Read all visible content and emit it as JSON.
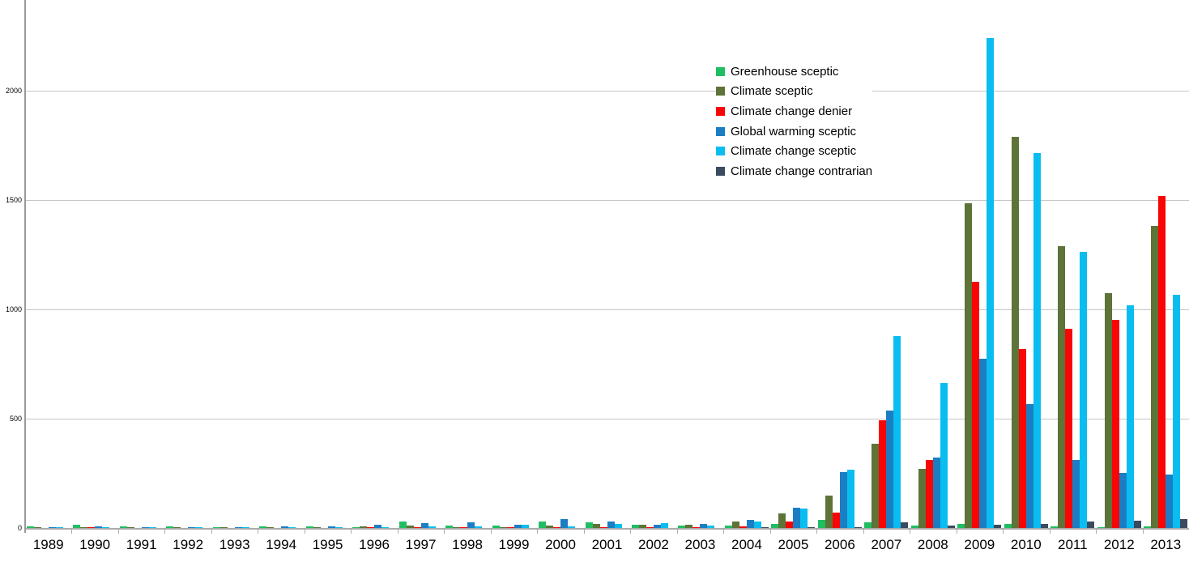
{
  "chart_data": {
    "type": "bar",
    "title": "",
    "xlabel": "",
    "ylabel": "",
    "ylim": [
      0,
      2500
    ],
    "yticks": [
      0,
      500,
      1000,
      1500,
      2000
    ],
    "grid": true,
    "legend_position": "inside-top-right",
    "categories": [
      "1989",
      "1990",
      "1991",
      "1992",
      "1993",
      "1994",
      "1995",
      "1996",
      "1997",
      "1998",
      "1999",
      "2000",
      "2001",
      "2002",
      "2003",
      "2004",
      "2005",
      "2006",
      "2007",
      "2008",
      "2009",
      "2010",
      "2011",
      "2012",
      "2013"
    ],
    "series": [
      {
        "name": "Greenhouse sceptic",
        "color": "#1FBE62",
        "values": [
          8,
          15,
          8,
          7,
          4,
          7,
          6,
          3,
          30,
          10,
          10,
          28,
          25,
          14,
          12,
          12,
          17,
          38,
          26,
          12,
          20,
          19,
          8,
          3,
          8
        ]
      },
      {
        "name": "Climate sceptic",
        "color": "#5D7338",
        "values": [
          2,
          2,
          2,
          2,
          1,
          2,
          2,
          8,
          10,
          5,
          5,
          11,
          18,
          15,
          15,
          28,
          66,
          147,
          384,
          269,
          1485,
          1790,
          1290,
          1073,
          1382
        ]
      },
      {
        "name": "Climate change denier",
        "color": "#F90505",
        "values": [
          0,
          1,
          0,
          0,
          0,
          0,
          0,
          1,
          1,
          1,
          1,
          1,
          2,
          5,
          4,
          8,
          30,
          72,
          491,
          310,
          1125,
          820,
          910,
          950,
          1517
        ]
      },
      {
        "name": "Global warming sceptic",
        "color": "#1B7EC3",
        "values": [
          2,
          7,
          3,
          3,
          3,
          7,
          8,
          16,
          24,
          27,
          16,
          40,
          28,
          15,
          17,
          36,
          94,
          254,
          536,
          322,
          775,
          565,
          312,
          252,
          245
        ]
      },
      {
        "name": "Climate change sceptic",
        "color": "#0ABDF1",
        "values": [
          1,
          2,
          2,
          2,
          1,
          2,
          2,
          4,
          6,
          8,
          14,
          6,
          18,
          24,
          12,
          28,
          90,
          267,
          878,
          664,
          2240,
          1715,
          1263,
          1018,
          1065
        ]
      },
      {
        "name": "Climate change contrarian",
        "color": "#3A4A5F",
        "values": [
          0,
          0,
          0,
          0,
          0,
          0,
          0,
          0,
          0,
          0,
          0,
          0,
          0,
          0,
          0,
          2,
          2,
          3,
          25,
          11,
          14,
          20,
          28,
          34,
          40
        ]
      }
    ]
  },
  "axes": {
    "y_tick_labels": [
      "0",
      "500",
      "1000",
      "1500",
      "2000"
    ],
    "x_tick_labels": [
      "1989",
      "1990",
      "1991",
      "1992",
      "1993",
      "1994",
      "1995",
      "1996",
      "1997",
      "1998",
      "1999",
      "2000",
      "2001",
      "2002",
      "2003",
      "2004",
      "2005",
      "2006",
      "2007",
      "2008",
      "2009",
      "2010",
      "2011",
      "2012",
      "2013"
    ]
  },
  "legend": {
    "items": [
      {
        "label": "Greenhouse sceptic",
        "color": "#1FBE62"
      },
      {
        "label": "Climate sceptic",
        "color": "#5D7338"
      },
      {
        "label": "Climate change denier",
        "color": "#F90505"
      },
      {
        "label": "Global warming sceptic",
        "color": "#1B7EC3"
      },
      {
        "label": "Climate change sceptic",
        "color": "#0ABDF1"
      },
      {
        "label": "Climate change contrarian",
        "color": "#3A4A5F"
      }
    ]
  },
  "colors": {
    "background": "#ffffff",
    "gridline": "#c6c6c6",
    "axis": "#ababab",
    "y_axis_line": "#9a9a9a",
    "text": "#000000"
  }
}
